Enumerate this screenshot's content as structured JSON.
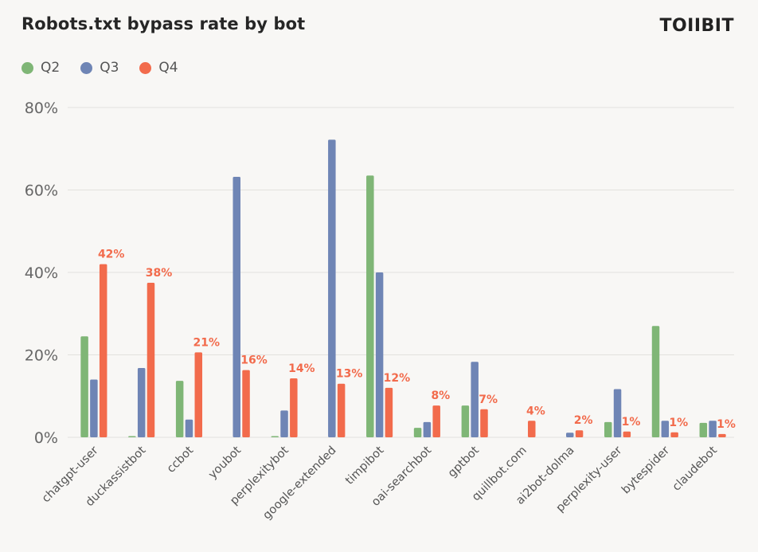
{
  "header": {
    "title": "Robots.txt bypass rate by bot",
    "brand": "TOIIBIT"
  },
  "colors": {
    "Q2": "#7fb676",
    "Q3": "#6f85b5",
    "Q4": "#f26b4c",
    "grid": "#e2e1de",
    "tick": "#666666"
  },
  "chart_data": {
    "type": "bar",
    "title": "Robots.txt bypass rate by bot",
    "xlabel": "",
    "ylabel": "",
    "ylim": [
      0,
      80
    ],
    "yticks": [
      0,
      20,
      40,
      60,
      80
    ],
    "ytick_labels": [
      "0%",
      "20%",
      "40%",
      "60%",
      "80%"
    ],
    "grid": true,
    "legend_position": "top-left",
    "categories": [
      "chatgpt-user",
      "duckassistbot",
      "ccbot",
      "youbot",
      "perplexitybot",
      "google-extended",
      "timpibot",
      "oai-searchbot",
      "gptbot",
      "quillbot.com",
      "ai2bot-dolma",
      "perplexity-user",
      "bytespider",
      "claudebot"
    ],
    "series": [
      {
        "name": "Q2",
        "values": [
          24.5,
          0.3,
          13.7,
          0,
          0.3,
          0,
          63.5,
          2.3,
          7.7,
          0,
          0,
          3.7,
          27,
          3.5
        ]
      },
      {
        "name": "Q3",
        "values": [
          14,
          16.8,
          4.3,
          63.2,
          6.5,
          72.2,
          40,
          3.7,
          18.3,
          0,
          1.1,
          11.7,
          4,
          4
        ]
      },
      {
        "name": "Q4",
        "values": [
          42,
          37.5,
          20.6,
          16.3,
          14.3,
          13,
          12,
          7.7,
          6.8,
          4,
          1.7,
          1.4,
          1.2,
          0.8
        ]
      }
    ],
    "data_labels": [
      "42%",
      "38%",
      "21%",
      "16%",
      "14%",
      "13%",
      "12%",
      "8%",
      "7%",
      "4%",
      "2%",
      "1%",
      "1%",
      "1%"
    ]
  }
}
